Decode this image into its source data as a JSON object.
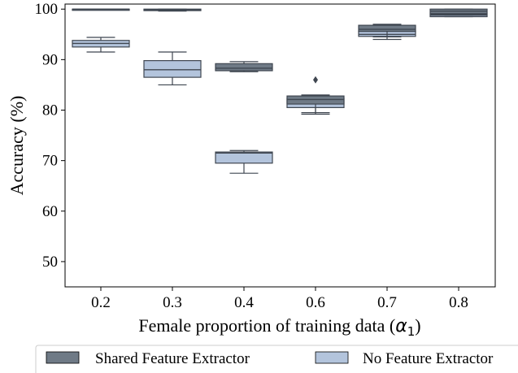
{
  "chart_data": {
    "type": "boxplot",
    "title": "",
    "xlabel": "Female proportion of training data (",
    "xlabel_symbol": "α",
    "xlabel_subscript": "1",
    "xlabel_close": ")",
    "ylabel": "Accuracy (%)",
    "ylim": [
      45,
      101
    ],
    "yticks": [
      50,
      60,
      70,
      80,
      90,
      100
    ],
    "categories": [
      "0.2",
      "0.3",
      "0.4",
      "0.6",
      "0.7",
      "0.8"
    ],
    "legend_position": "bottom",
    "series": [
      {
        "name": "Shared Feature Extractor",
        "color": "#6f7a86",
        "boxes": [
          {
            "whislo": 99.9,
            "q1": 99.95,
            "med": 100.0,
            "q3": 100.0,
            "whishi": 100.0,
            "fliers": []
          },
          {
            "whislo": 99.6,
            "q1": 99.7,
            "med": 99.85,
            "q3": 100.0,
            "whishi": 100.0,
            "fliers": []
          },
          {
            "whislo": 87.6,
            "q1": 87.8,
            "med": 88.3,
            "q3": 89.2,
            "whishi": 89.6,
            "fliers": []
          },
          {
            "whislo": 79.5,
            "q1": 81.2,
            "med": 82.1,
            "q3": 82.8,
            "whishi": 83.0,
            "fliers": [
              86.0
            ]
          },
          {
            "whislo": 94.5,
            "q1": 95.6,
            "med": 96.0,
            "q3": 96.8,
            "whishi": 97.0,
            "fliers": []
          },
          {
            "whislo": 98.8,
            "q1": 99.1,
            "med": 99.6,
            "q3": 100.0,
            "whishi": 100.0,
            "fliers": []
          }
        ]
      },
      {
        "name": "No Feature Extractor",
        "color": "#b3c4dc",
        "boxes": [
          {
            "whislo": 91.5,
            "q1": 92.5,
            "med": 93.2,
            "q3": 93.8,
            "whishi": 94.4,
            "fliers": []
          },
          {
            "whislo": 85.0,
            "q1": 86.5,
            "med": 88.0,
            "q3": 89.8,
            "whishi": 91.5,
            "fliers": []
          },
          {
            "whislo": 67.5,
            "q1": 69.5,
            "med": 71.5,
            "q3": 71.7,
            "whishi": 72.0,
            "fliers": []
          },
          {
            "whislo": 79.2,
            "q1": 80.5,
            "med": 81.5,
            "q3": 82.3,
            "whishi": 82.7,
            "fliers": []
          },
          {
            "whislo": 94.0,
            "q1": 94.6,
            "med": 95.0,
            "q3": 95.6,
            "whishi": 96.0,
            "fliers": []
          },
          {
            "whislo": 98.5,
            "q1": 98.5,
            "med": 98.8,
            "q3": 99.0,
            "whishi": 99.0,
            "fliers": []
          }
        ]
      }
    ]
  }
}
